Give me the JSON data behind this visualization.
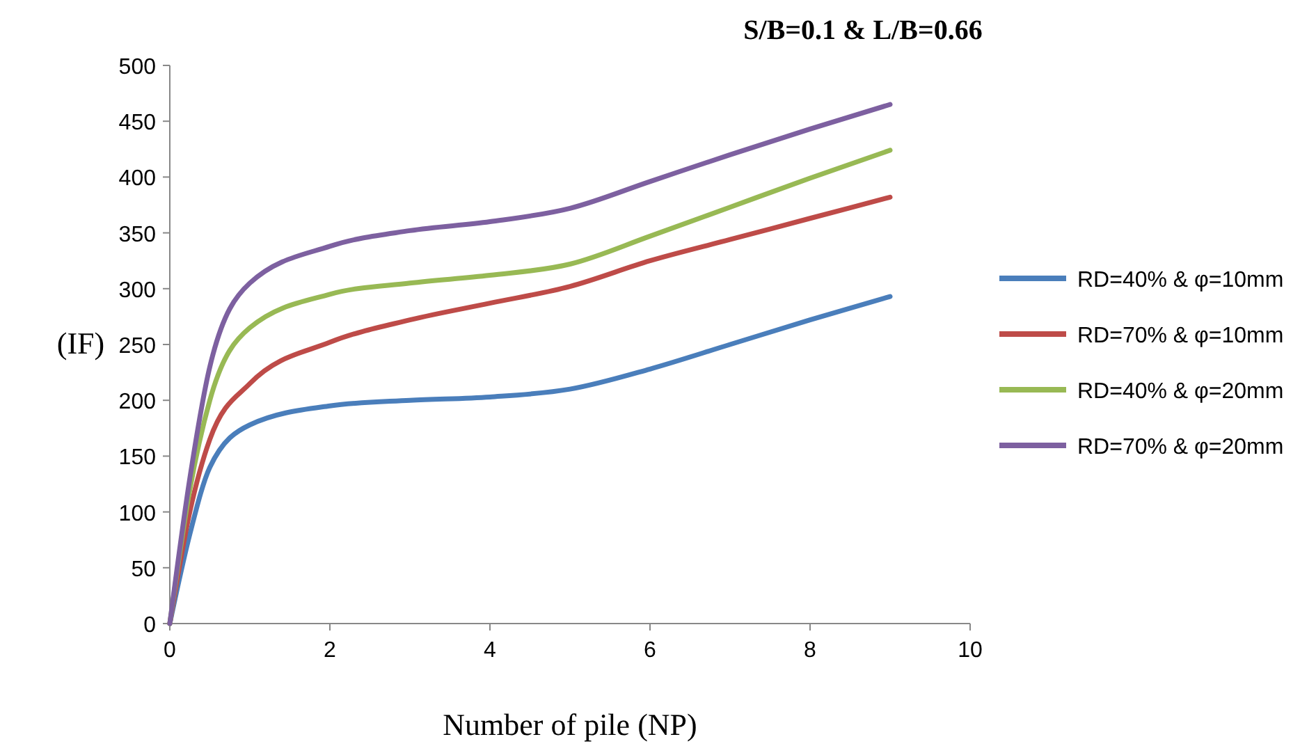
{
  "chart_data": {
    "type": "line",
    "title": "S/B=0.1 & L/B=0.66",
    "xlabel": "Number of pile (NP)",
    "ylabel": "(IF)",
    "x": [
      0,
      0.25,
      0.5,
      1,
      2,
      3,
      4,
      5,
      6,
      7,
      8,
      9
    ],
    "series": [
      {
        "name": "RD=40% & φ=10mm",
        "color": "#4a7ebb",
        "values": [
          0,
          80,
          140,
          178,
          195,
          200,
          203,
          210,
          228,
          250,
          272,
          293
        ]
      },
      {
        "name": "RD=70% & φ=10mm",
        "color": "#be4b48",
        "values": [
          0,
          100,
          165,
          215,
          252,
          272,
          287,
          302,
          325,
          344,
          363,
          382
        ]
      },
      {
        "name": "RD=40% & φ=20mm",
        "color": "#98b954",
        "values": [
          0,
          120,
          200,
          265,
          295,
          305,
          312,
          322,
          347,
          373,
          399,
          424
        ]
      },
      {
        "name": "RD=70% & φ=20mm",
        "color": "#7d60a0",
        "values": [
          0,
          130,
          230,
          305,
          338,
          352,
          360,
          372,
          396,
          420,
          443,
          465
        ]
      }
    ],
    "xlim": [
      0,
      10
    ],
    "xticks": [
      0,
      2,
      4,
      6,
      8,
      10
    ],
    "ylim": [
      0,
      500
    ],
    "yticks": [
      0,
      50,
      100,
      150,
      200,
      250,
      300,
      350,
      400,
      450,
      500
    ],
    "grid": false,
    "legend": "right",
    "marker": "none",
    "line_style": "solid"
  }
}
